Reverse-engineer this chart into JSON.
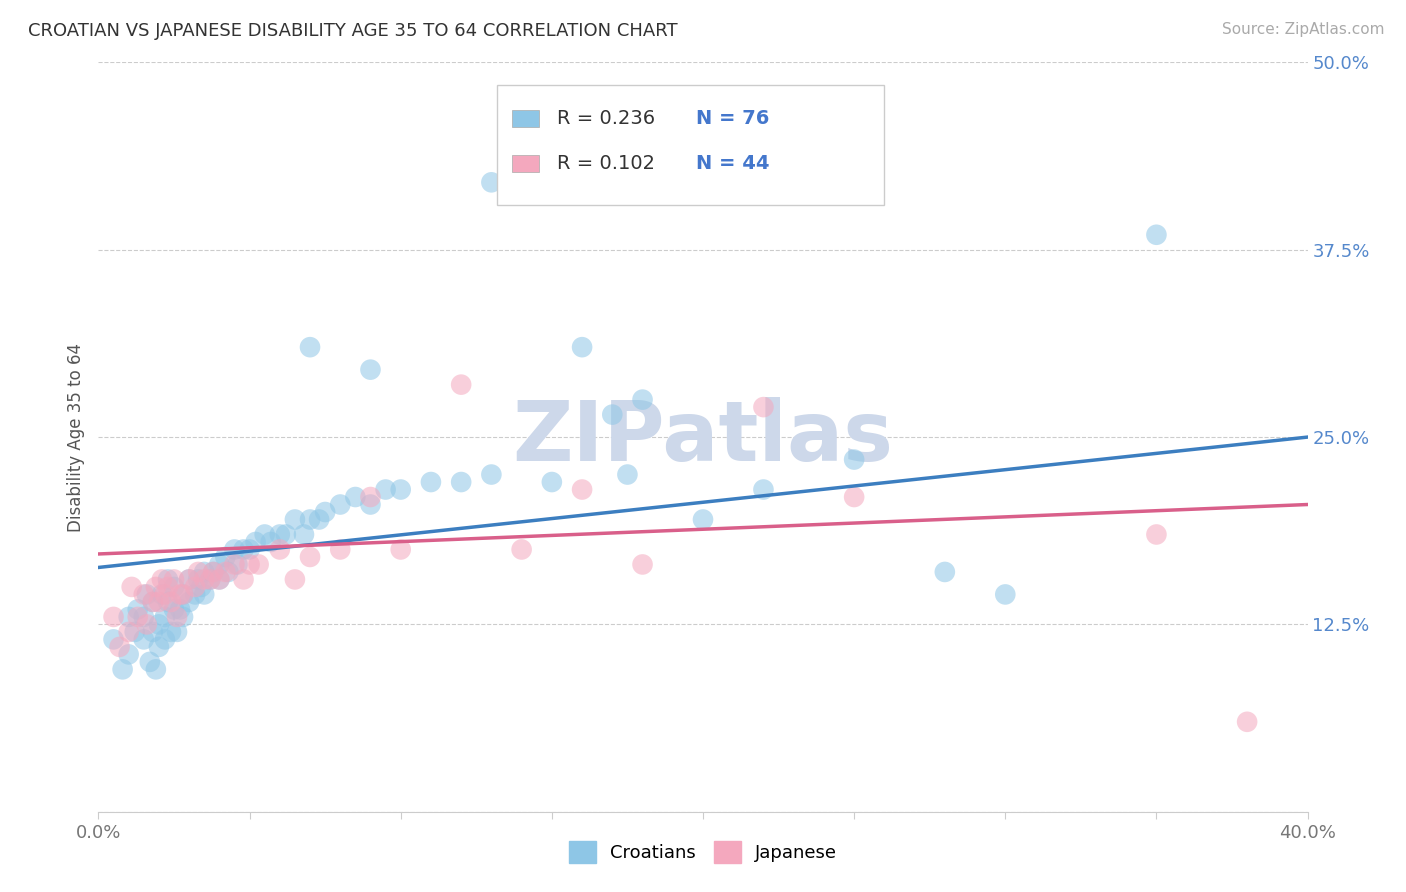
{
  "title": "CROATIAN VS JAPANESE DISABILITY AGE 35 TO 64 CORRELATION CHART",
  "source_text": "Source: ZipAtlas.com",
  "ylabel_text": "Disability Age 35 to 64",
  "xlim": [
    0.0,
    0.4
  ],
  "ylim": [
    0.0,
    0.5
  ],
  "xticks": [
    0.0,
    0.05,
    0.1,
    0.15,
    0.2,
    0.25,
    0.3,
    0.35,
    0.4
  ],
  "xticklabels": [
    "0.0%",
    "",
    "",
    "",
    "",
    "",
    "",
    "",
    "40.0%"
  ],
  "yticks": [
    0.0,
    0.125,
    0.25,
    0.375,
    0.5
  ],
  "yticklabels": [
    "",
    "12.5%",
    "25.0%",
    "37.5%",
    "50.0%"
  ],
  "blue_color": "#8ec6e6",
  "pink_color": "#f4a8be",
  "blue_line_color": "#3c7ec0",
  "pink_line_color": "#d95f8a",
  "legend_R1": "0.236",
  "legend_N1": "76",
  "legend_R2": "0.102",
  "legend_N2": "44",
  "watermark": "ZIPatlas",
  "watermark_color": "#cdd8ea",
  "blue_x": [
    0.005,
    0.008,
    0.01,
    0.01,
    0.012,
    0.013,
    0.015,
    0.015,
    0.016,
    0.017,
    0.018,
    0.018,
    0.019,
    0.02,
    0.02,
    0.021,
    0.022,
    0.022,
    0.023,
    0.023,
    0.024,
    0.025,
    0.025,
    0.026,
    0.027,
    0.028,
    0.028,
    0.03,
    0.03,
    0.032,
    0.033,
    0.034,
    0.035,
    0.035,
    0.037,
    0.038,
    0.04,
    0.04,
    0.042,
    0.043,
    0.045,
    0.046,
    0.048,
    0.05,
    0.052,
    0.055,
    0.057,
    0.06,
    0.062,
    0.065,
    0.068,
    0.07,
    0.073,
    0.075,
    0.08,
    0.085,
    0.09,
    0.095,
    0.1,
    0.11,
    0.12,
    0.13,
    0.15,
    0.175,
    0.2,
    0.25,
    0.3,
    0.17,
    0.18,
    0.22,
    0.28,
    0.35,
    0.16,
    0.13,
    0.09,
    0.07
  ],
  "blue_y": [
    0.115,
    0.095,
    0.105,
    0.13,
    0.12,
    0.135,
    0.115,
    0.13,
    0.145,
    0.1,
    0.12,
    0.14,
    0.095,
    0.11,
    0.125,
    0.145,
    0.115,
    0.13,
    0.14,
    0.155,
    0.12,
    0.135,
    0.15,
    0.12,
    0.135,
    0.13,
    0.145,
    0.14,
    0.155,
    0.145,
    0.155,
    0.15,
    0.16,
    0.145,
    0.155,
    0.16,
    0.165,
    0.155,
    0.17,
    0.16,
    0.175,
    0.165,
    0.175,
    0.175,
    0.18,
    0.185,
    0.18,
    0.185,
    0.185,
    0.195,
    0.185,
    0.195,
    0.195,
    0.2,
    0.205,
    0.21,
    0.205,
    0.215,
    0.215,
    0.22,
    0.22,
    0.225,
    0.22,
    0.225,
    0.195,
    0.235,
    0.145,
    0.265,
    0.275,
    0.215,
    0.16,
    0.385,
    0.31,
    0.42,
    0.295,
    0.31
  ],
  "pink_x": [
    0.005,
    0.007,
    0.01,
    0.011,
    0.013,
    0.015,
    0.016,
    0.018,
    0.019,
    0.02,
    0.021,
    0.022,
    0.023,
    0.024,
    0.025,
    0.026,
    0.027,
    0.028,
    0.03,
    0.032,
    0.033,
    0.035,
    0.037,
    0.038,
    0.04,
    0.042,
    0.045,
    0.048,
    0.05,
    0.053,
    0.06,
    0.065,
    0.07,
    0.08,
    0.09,
    0.1,
    0.12,
    0.14,
    0.16,
    0.18,
    0.22,
    0.25,
    0.35,
    0.38
  ],
  "pink_y": [
    0.13,
    0.11,
    0.12,
    0.15,
    0.13,
    0.145,
    0.125,
    0.14,
    0.15,
    0.14,
    0.155,
    0.145,
    0.15,
    0.14,
    0.155,
    0.13,
    0.145,
    0.145,
    0.155,
    0.15,
    0.16,
    0.155,
    0.155,
    0.16,
    0.155,
    0.16,
    0.165,
    0.155,
    0.165,
    0.165,
    0.175,
    0.155,
    0.17,
    0.175,
    0.21,
    0.175,
    0.285,
    0.175,
    0.215,
    0.165,
    0.27,
    0.21,
    0.185,
    0.06
  ],
  "trend_blue_x0": 0.0,
  "trend_blue_y0": 0.163,
  "trend_blue_x1": 0.4,
  "trend_blue_y1": 0.25,
  "trend_pink_x0": 0.0,
  "trend_pink_y0": 0.172,
  "trend_pink_x1": 0.4,
  "trend_pink_y1": 0.205
}
